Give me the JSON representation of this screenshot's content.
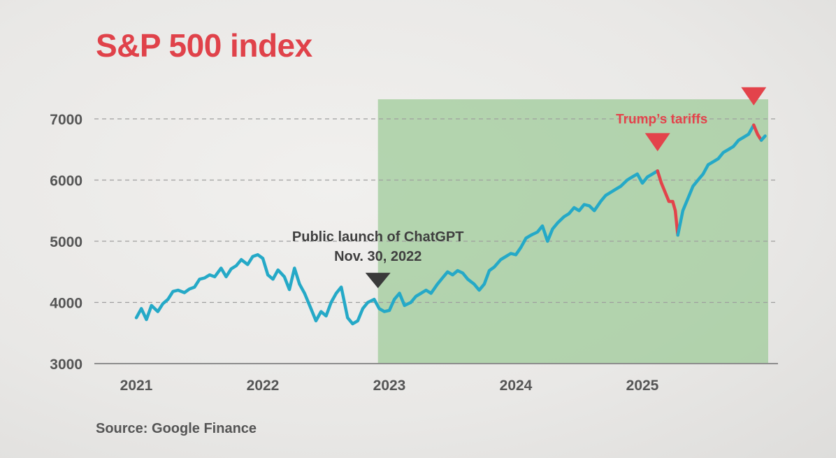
{
  "title": "S&P 500 index",
  "source": "Source: Google Finance",
  "colors": {
    "title": "#e0424a",
    "line": "#25a9c7",
    "tariff": "#e3434b",
    "highlight": "#9fcb9a",
    "text": "#555555",
    "grid": "#9e9e9e",
    "annotation_marker": "#3a3a3a"
  },
  "chart_data": {
    "type": "line",
    "title": "S&P 500 index",
    "xlim": [
      2020.75,
      2026.0
    ],
    "ylim": [
      3000,
      7000
    ],
    "yticks": [
      3000,
      4000,
      5000,
      6000,
      7000
    ],
    "xticks": [
      {
        "value": 2021.0,
        "label": "2021"
      },
      {
        "value": 2022.0,
        "label": "2022"
      },
      {
        "value": 2023.0,
        "label": "2023"
      },
      {
        "value": 2024.0,
        "label": "2024"
      },
      {
        "value": 2025.0,
        "label": "2025"
      }
    ],
    "grid": "horizontal dashed",
    "highlight_region": {
      "x_start": 2022.91,
      "x_end": 2026.0
    },
    "series": [
      {
        "style": "main",
        "x": [
          2021.0,
          2021.04,
          2021.08,
          2021.12,
          2021.17,
          2021.21,
          2021.25,
          2021.29,
          2021.33,
          2021.38,
          2021.42,
          2021.46,
          2021.5,
          2021.54,
          2021.58,
          2021.62,
          2021.67,
          2021.71,
          2021.75,
          2021.79,
          2021.83,
          2021.88,
          2021.92,
          2021.96,
          2022.0,
          2022.04,
          2022.08,
          2022.12,
          2022.17,
          2022.21,
          2022.25,
          2022.29,
          2022.33,
          2022.38,
          2022.42,
          2022.46,
          2022.5,
          2022.54,
          2022.58,
          2022.62,
          2022.67,
          2022.71,
          2022.75,
          2022.79,
          2022.83,
          2022.88,
          2022.92,
          2022.96,
          2023.0,
          2023.04,
          2023.08,
          2023.12,
          2023.17,
          2023.21,
          2023.25,
          2023.29,
          2023.33,
          2023.38,
          2023.42,
          2023.46,
          2023.5,
          2023.54,
          2023.58,
          2023.62,
          2023.67,
          2023.71,
          2023.75,
          2023.79,
          2023.83,
          2023.88,
          2023.92,
          2023.96,
          2024.0,
          2024.04,
          2024.08,
          2024.12,
          2024.17,
          2024.21,
          2024.25,
          2024.29,
          2024.33,
          2024.38,
          2024.42,
          2024.46,
          2024.5,
          2024.54,
          2024.58,
          2024.62,
          2024.67,
          2024.71,
          2024.75,
          2024.79,
          2024.83,
          2024.88,
          2024.92,
          2024.96,
          2025.0,
          2025.04,
          2025.08,
          2025.12
        ],
        "y": [
          3750,
          3900,
          3720,
          3950,
          3850,
          3980,
          4050,
          4180,
          4200,
          4160,
          4220,
          4250,
          4380,
          4400,
          4450,
          4420,
          4560,
          4420,
          4550,
          4600,
          4700,
          4620,
          4750,
          4780,
          4720,
          4450,
          4380,
          4530,
          4420,
          4210,
          4560,
          4300,
          4150,
          3900,
          3700,
          3850,
          3780,
          4000,
          4150,
          4250,
          3750,
          3650,
          3700,
          3900,
          4000,
          4050,
          3900,
          3850,
          3870,
          4050,
          4150,
          3950,
          4000,
          4100,
          4150,
          4200,
          4150,
          4300,
          4400,
          4500,
          4450,
          4520,
          4480,
          4380,
          4300,
          4200,
          4300,
          4520,
          4580,
          4700,
          4750,
          4800,
          4780,
          4900,
          5050,
          5100,
          5150,
          5250,
          5000,
          5200,
          5300,
          5400,
          5450,
          5550,
          5500,
          5600,
          5580,
          5500,
          5650,
          5750,
          5800,
          5850,
          5900,
          6000,
          6050,
          6100,
          5950,
          6050,
          6100,
          6150
        ]
      },
      {
        "style": "highlight",
        "name": "Trump’s tariffs",
        "x": [
          2025.12,
          2025.15,
          2025.18,
          2025.21,
          2025.24,
          2025.26,
          2025.28
        ],
        "y": [
          6150,
          5950,
          5800,
          5650,
          5650,
          5500,
          5100
        ]
      },
      {
        "style": "main",
        "x": [
          2025.28,
          2025.32,
          2025.36,
          2025.4,
          2025.44,
          2025.48,
          2025.52,
          2025.56,
          2025.6,
          2025.64,
          2025.68,
          2025.72,
          2025.76,
          2025.8,
          2025.84,
          2025.88
        ],
        "y": [
          5100,
          5500,
          5700,
          5900,
          6000,
          6100,
          6250,
          6300,
          6350,
          6450,
          6500,
          6550,
          6650,
          6700,
          6750,
          6900
        ]
      },
      {
        "style": "highlight",
        "x": [
          2025.88,
          2025.91,
          2025.94
        ],
        "y": [
          6900,
          6750,
          6650
        ]
      },
      {
        "style": "main",
        "x": [
          2025.94,
          2025.97
        ],
        "y": [
          6650,
          6720
        ]
      }
    ],
    "annotations": [
      {
        "lines": [
          "Public launch of ChatGPT",
          "Nov. 30, 2022"
        ],
        "x": 2022.91,
        "y": 4050,
        "style": "dark"
      },
      {
        "lines": [
          "Trump’s tariffs"
        ],
        "x": 2025.12,
        "y": 6150,
        "style": "red"
      },
      {
        "lines": [
          ""
        ],
        "x": 2025.88,
        "y": 6900,
        "style": "red"
      }
    ]
  }
}
